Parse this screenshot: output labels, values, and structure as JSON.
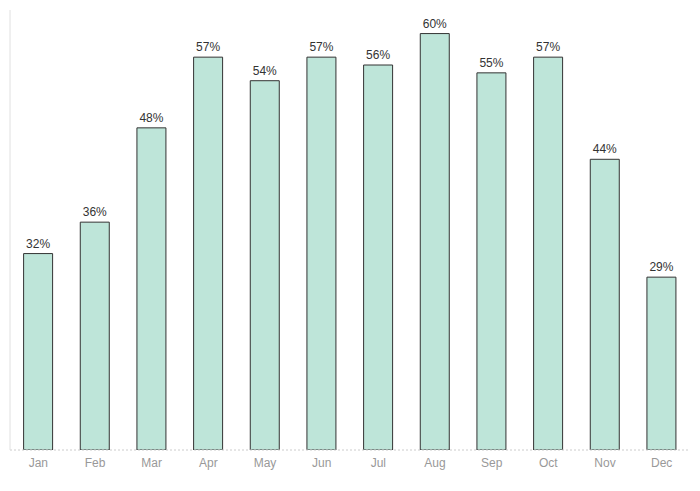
{
  "chart_data": {
    "type": "bar",
    "categories": [
      "Jan",
      "Feb",
      "Mar",
      "Apr",
      "May",
      "Jun",
      "Jul",
      "Aug",
      "Sep",
      "Oct",
      "Nov",
      "Dec"
    ],
    "values": [
      32,
      36,
      48,
      57,
      54,
      57,
      56,
      60,
      55,
      57,
      44,
      29
    ],
    "value_labels": [
      "32%",
      "36%",
      "48%",
      "57%",
      "54%",
      "57%",
      "56%",
      "60%",
      "55%",
      "57%",
      "44%",
      "29%"
    ],
    "color": "#bee5d9",
    "ylim": [
      7,
      63
    ],
    "data_labels": true,
    "tick_labels": "x",
    "grid": false
  }
}
